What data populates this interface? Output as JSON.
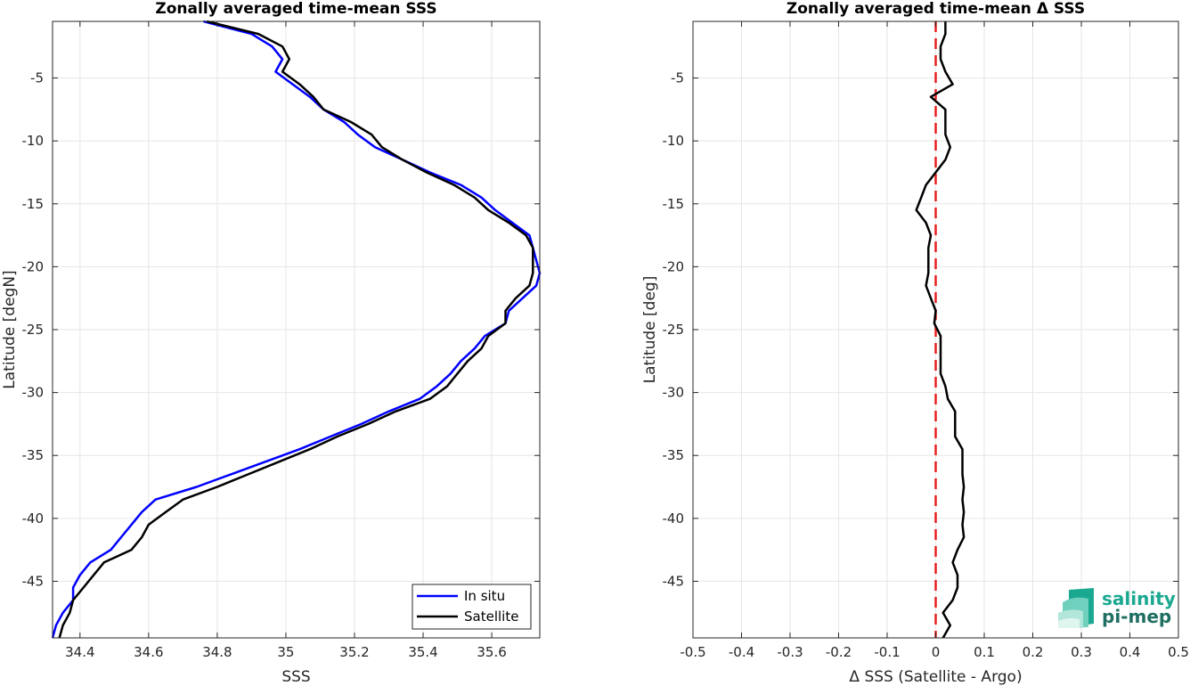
{
  "chart_data": [
    {
      "type": "line",
      "title": "Zonally averaged time-mean SSS",
      "xlabel": "SSS",
      "ylabel": "Latitude [degN]",
      "xlim": [
        34.32,
        35.74
      ],
      "ylim": [
        -49.5,
        -0.5
      ],
      "xticks": [
        34.4,
        34.6,
        34.8,
        35,
        35.2,
        35.4,
        35.6
      ],
      "xtick_labels": [
        "34.4",
        "34.6",
        "34.8",
        "35",
        "35.2",
        "35.4",
        "35.6"
      ],
      "yticks": [
        -5,
        -10,
        -15,
        -20,
        -25,
        -30,
        -35,
        -40,
        -45
      ],
      "ytick_labels": [
        "-5",
        "-10",
        "-15",
        "-20",
        "-25",
        "-30",
        "-35",
        "-40",
        "-45"
      ],
      "grid": true,
      "legend": "bottom-right",
      "series": [
        {
          "name": "In situ",
          "color": "#0000ff",
          "y": [
            -0.5,
            -1.5,
            -2.5,
            -3.5,
            -4.5,
            -5.5,
            -6.5,
            -7.5,
            -8.5,
            -9.5,
            -10.5,
            -11.5,
            -12.5,
            -13.5,
            -14.5,
            -15.5,
            -16.5,
            -17.5,
            -18.5,
            -19.5,
            -20.5,
            -21.5,
            -22.5,
            -23.5,
            -24.5,
            -25.5,
            -26.5,
            -27.5,
            -28.5,
            -29.5,
            -30.5,
            -31.5,
            -32.5,
            -33.5,
            -34.5,
            -35.5,
            -36.5,
            -37.5,
            -38.5,
            -39.5,
            -40.5,
            -41.5,
            -42.5,
            -43.5,
            -44.5,
            -45.5,
            -46.5,
            -47.5,
            -48.5,
            -49.5
          ],
          "x": [
            34.76,
            34.9,
            34.96,
            34.99,
            34.97,
            35.02,
            35.07,
            35.11,
            35.17,
            35.21,
            35.26,
            35.34,
            35.42,
            35.51,
            35.57,
            35.61,
            35.66,
            35.71,
            35.72,
            35.73,
            35.74,
            35.73,
            35.69,
            35.65,
            35.64,
            35.58,
            35.55,
            35.51,
            35.48,
            35.44,
            35.39,
            35.3,
            35.22,
            35.13,
            35.04,
            34.94,
            34.84,
            34.74,
            34.62,
            34.58,
            34.55,
            34.52,
            34.49,
            34.43,
            34.4,
            34.38,
            34.38,
            34.35,
            34.33,
            34.32
          ]
        },
        {
          "name": "Satellite",
          "color": "#000000",
          "y": [
            -0.5,
            -1.5,
            -2.5,
            -3.5,
            -4.5,
            -5.5,
            -6.5,
            -7.5,
            -8.5,
            -9.5,
            -10.5,
            -11.5,
            -12.5,
            -13.5,
            -14.5,
            -15.5,
            -16.5,
            -17.5,
            -18.5,
            -19.5,
            -20.5,
            -21.5,
            -22.5,
            -23.5,
            -24.5,
            -25.5,
            -26.5,
            -27.5,
            -28.5,
            -29.5,
            -30.5,
            -31.5,
            -32.5,
            -33.5,
            -34.5,
            -35.5,
            -36.5,
            -37.5,
            -38.5,
            -39.5,
            -40.5,
            -41.5,
            -42.5,
            -43.5,
            -44.5,
            -45.5,
            -46.5,
            -47.5,
            -48.5,
            -49.5
          ],
          "x": [
            34.77,
            34.92,
            34.99,
            35.01,
            34.99,
            35.04,
            35.08,
            35.11,
            35.19,
            35.25,
            35.28,
            35.34,
            35.41,
            35.49,
            35.55,
            35.59,
            35.65,
            35.7,
            35.72,
            35.72,
            35.72,
            35.71,
            35.67,
            35.64,
            35.64,
            35.59,
            35.57,
            35.53,
            35.5,
            35.47,
            35.42,
            35.32,
            35.24,
            35.15,
            35.07,
            34.98,
            34.89,
            34.8,
            34.7,
            34.65,
            34.6,
            34.58,
            34.55,
            34.47,
            34.44,
            34.41,
            34.38,
            34.37,
            34.35,
            34.34
          ]
        }
      ]
    },
    {
      "type": "line",
      "title": "Zonally averaged time-mean Δ SSS",
      "xlabel": "Δ SSS (Satellite - Argo)",
      "ylabel": "Latitude [deg]",
      "xlim": [
        -0.5,
        0.5
      ],
      "ylim": [
        -49.5,
        -0.5
      ],
      "xticks": [
        -0.5,
        -0.4,
        -0.3,
        -0.2,
        -0.1,
        0,
        0.1,
        0.2,
        0.3,
        0.4,
        0.5
      ],
      "xtick_labels": [
        "-0.5",
        "-0.4",
        "-0.3",
        "-0.2",
        "-0.1",
        "0",
        "0.1",
        "0.2",
        "0.3",
        "0.4",
        "0.5"
      ],
      "yticks": [
        -5,
        -10,
        -15,
        -20,
        -25,
        -30,
        -35,
        -40,
        -45
      ],
      "ytick_labels": [
        "-5",
        "-10",
        "-15",
        "-20",
        "-25",
        "-30",
        "-35",
        "-40",
        "-45"
      ],
      "grid": true,
      "reference_line": {
        "x": 0,
        "color": "#e8201f",
        "style": "dashed"
      },
      "series": [
        {
          "color": "#000000",
          "y": [
            -0.5,
            -1.5,
            -2.5,
            -3.5,
            -4.5,
            -5.5,
            -6.5,
            -7.5,
            -8.5,
            -9.5,
            -10.5,
            -11.5,
            -12.5,
            -13.5,
            -14.5,
            -15.5,
            -16.5,
            -17.5,
            -18.5,
            -19.5,
            -20.5,
            -21.5,
            -22.5,
            -23.5,
            -24.5,
            -25.5,
            -26.5,
            -27.5,
            -28.5,
            -29.5,
            -30.5,
            -31.5,
            -32.5,
            -33.5,
            -34.5,
            -35.5,
            -36.5,
            -37.5,
            -38.5,
            -39.5,
            -40.5,
            -41.5,
            -42.5,
            -43.5,
            -44.5,
            -45.5,
            -46.5,
            -47.5,
            -48.5,
            -49.5
          ],
          "x": [
            0.02,
            0.02,
            0.01,
            0.01,
            0.02,
            0.035,
            -0.01,
            0.02,
            0.02,
            0.02,
            0.03,
            0.02,
            0.0,
            -0.02,
            -0.03,
            -0.04,
            -0.02,
            -0.01,
            -0.015,
            -0.015,
            -0.015,
            -0.02,
            -0.01,
            0.0,
            -0.003,
            0.01,
            0.01,
            0.01,
            0.01,
            0.02,
            0.025,
            0.04,
            0.04,
            0.04,
            0.055,
            0.055,
            0.055,
            0.058,
            0.055,
            0.058,
            0.055,
            0.058,
            0.045,
            0.035,
            0.045,
            0.045,
            0.035,
            0.015,
            0.03,
            0.015
          ]
        }
      ]
    }
  ],
  "legend": {
    "items": [
      "In situ",
      "Satellite"
    ]
  },
  "logo": {
    "line1": "salinity",
    "line2": "pi-mep"
  }
}
